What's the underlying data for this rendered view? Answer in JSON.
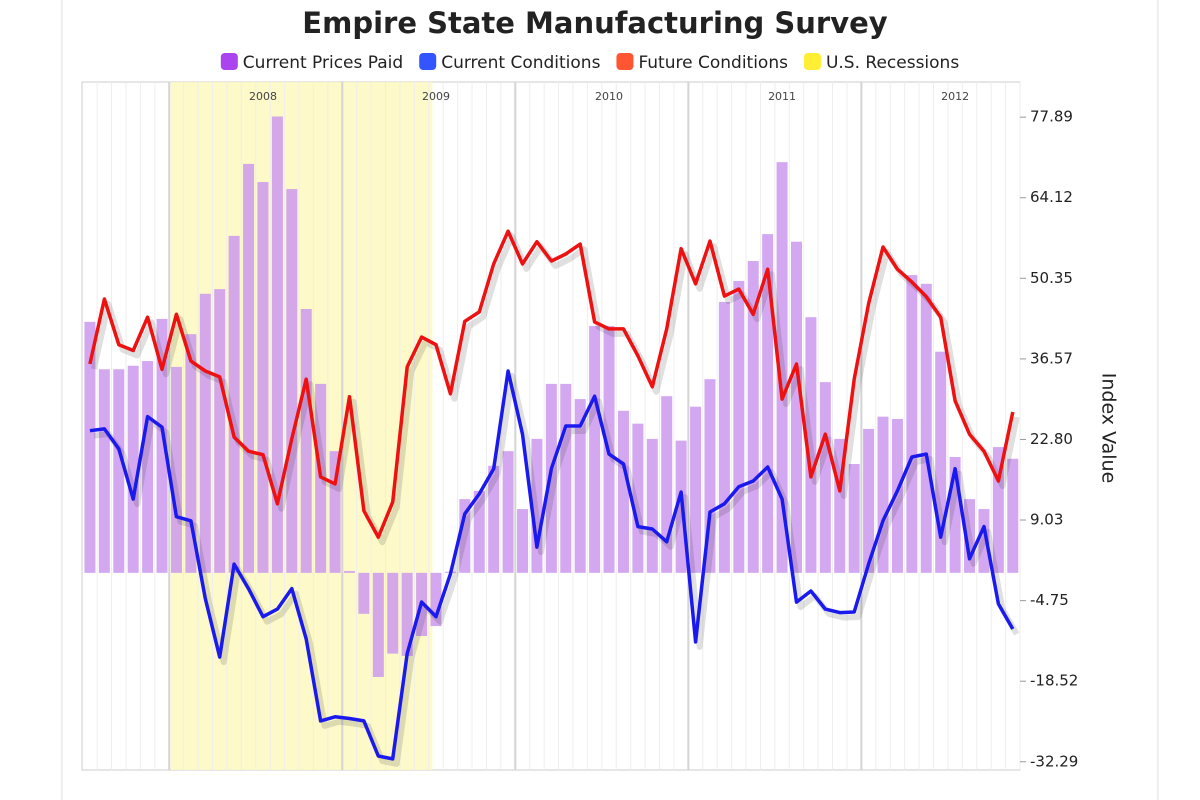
{
  "chart_data": {
    "type": "combo",
    "title": "Empire State Manufacturing Survey",
    "y_axis_label": "Index Value",
    "x": [
      0,
      1,
      2,
      3,
      4,
      5,
      6,
      7,
      8,
      9,
      10,
      11,
      12,
      13,
      14,
      15,
      16,
      17,
      18,
      19,
      20,
      21,
      22,
      23,
      24,
      25,
      26,
      27,
      28,
      29,
      30,
      31,
      32,
      33,
      34,
      35,
      36,
      37,
      38,
      39,
      40,
      41,
      42,
      43,
      44,
      45,
      46,
      47,
      48,
      49,
      50,
      51,
      52,
      53,
      54,
      55,
      56,
      57,
      58,
      59,
      60,
      61,
      62,
      63,
      64
    ],
    "xlim": [
      -0.55,
      64.5
    ],
    "xticks": [
      {
        "value": 6,
        "label": "2008"
      },
      {
        "value": 18,
        "label": "2009"
      },
      {
        "value": 30,
        "label": "2010"
      },
      {
        "value": 42,
        "label": "2011"
      },
      {
        "value": 54,
        "label": "2012"
      }
    ],
    "ylim": [
      -33.7,
      83.9
    ],
    "yticks": [
      77.89,
      64.12,
      50.35,
      36.57,
      {
        "value": 22.8,
        "label": "22.80"
      },
      9.03,
      -4.75,
      -18.52,
      -32.29
    ],
    "series": [
      {
        "name": "Current Prices Paid",
        "type": "bar",
        "color": "#cc99ee",
        "legend_color": "#aa44ee",
        "values": [
          42.9,
          34.8,
          34.8,
          35.4,
          36.2,
          43.4,
          35.2,
          40.8,
          47.7,
          48.5,
          57.6,
          69.9,
          66.8,
          78,
          65.6,
          45.1,
          32.3,
          20.8,
          0.3,
          -7,
          -17.8,
          -13.8,
          -14.2,
          -10.8,
          -9.1,
          0.2,
          12.6,
          14,
          18.3,
          20.8,
          10.9,
          22.9,
          32.3,
          32.3,
          29.7,
          42.2,
          42.2,
          27.7,
          25.5,
          22.9,
          30.2,
          22.6,
          28.4,
          33.1,
          46.3,
          49.9,
          53.3,
          57.9,
          70.2,
          56.6,
          43.7,
          32.6,
          22.9,
          18.6,
          24.6,
          26.7,
          26.3,
          50.9,
          49.4,
          37.8,
          19.8,
          12.6,
          10.9,
          21.5,
          19.5
        ]
      },
      {
        "name": "Current Conditions",
        "type": "line",
        "color": "#1a1aee",
        "legend_color": "#3355ff",
        "values": [
          24.3,
          24.6,
          21.2,
          12.6,
          26.7,
          24.9,
          9.6,
          8.9,
          -4.4,
          -14.4,
          1.5,
          -2.7,
          -7.5,
          -6.2,
          -2.7,
          -11.3,
          -25.3,
          -24.6,
          -24.9,
          -25.3,
          -31.3,
          -31.8,
          -13.8,
          -5,
          -7.5,
          -0.2,
          10.1,
          13.5,
          17.8,
          34.5,
          23.7,
          4.4,
          17.8,
          25.1,
          25.1,
          30.2,
          20.3,
          18.6,
          7.9,
          7.5,
          5.3,
          13.8,
          -11.8,
          10.4,
          11.8,
          14.7,
          15.7,
          18.1,
          12.6,
          -5,
          -3.1,
          -6.2,
          -6.8,
          -6.7,
          1.5,
          8.9,
          14,
          19.8,
          20.3,
          6.1,
          17.8,
          2.4,
          7.9,
          -5.3,
          -9.6
        ]
      },
      {
        "name": "Future Conditions",
        "type": "line",
        "color": "#ee1111",
        "legend_color": "#ff5533",
        "values": [
          35.7,
          46.8,
          39,
          38,
          43.7,
          34.8,
          44.2,
          36.2,
          34.5,
          33.5,
          23.2,
          20.8,
          20.2,
          11.8,
          22.9,
          33.1,
          16.4,
          15.2,
          30.1,
          10.6,
          6.1,
          12.1,
          35.2,
          40.3,
          39,
          30.6,
          43,
          44.6,
          52.8,
          58.4,
          52.8,
          56.6,
          53.3,
          54.5,
          56.2,
          42.9,
          41.7,
          41.7,
          37.1,
          31.8,
          41.7,
          55.4,
          49.4,
          56.7,
          47.3,
          48.5,
          44.2,
          51.9,
          29.7,
          35.7,
          16.4,
          23.7,
          14,
          33.1,
          46,
          55.7,
          51.9,
          49.7,
          47.2,
          43.7,
          29.4,
          23.7,
          20.8,
          15.7,
          27.5
        ]
      },
      {
        "name": "U.S. Recessions",
        "type": "band",
        "color": "#fdf8c0",
        "legend_color": "#ffee33",
        "x_range": [
          5.6,
          23.75
        ]
      }
    ]
  }
}
